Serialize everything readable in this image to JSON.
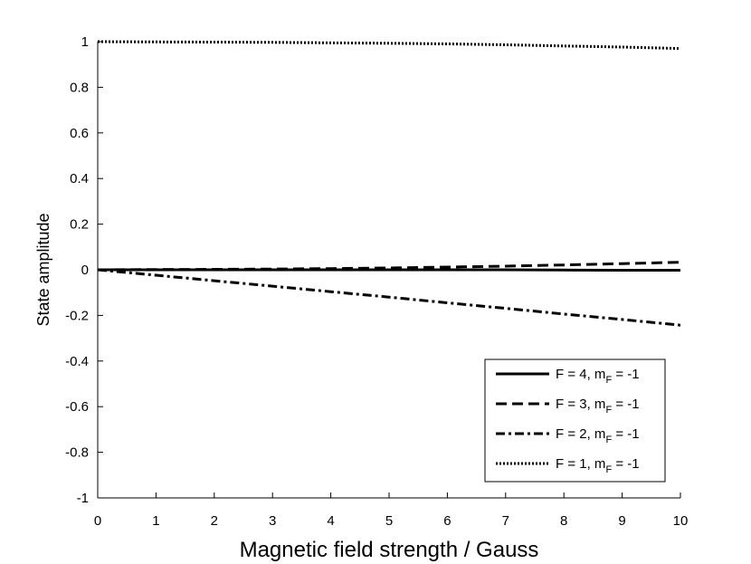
{
  "chart_data": {
    "type": "line",
    "title": "",
    "xlabel": "Magnetic field strength / Gauss",
    "ylabel": "State amplitude",
    "xlim": [
      0,
      10
    ],
    "ylim": [
      -1,
      1
    ],
    "xticks": [
      "0",
      "1",
      "2",
      "3",
      "4",
      "5",
      "6",
      "7",
      "8",
      "9",
      "10"
    ],
    "yticks": [
      "-1",
      "-0.8",
      "-0.6",
      "-0.4",
      "-0.2",
      "0",
      "0.2",
      "0.4",
      "0.6",
      "0.8",
      "1"
    ],
    "grid": false,
    "legend_position": "bottom-right",
    "x": [
      0,
      1,
      2,
      3,
      4,
      5,
      6,
      7,
      8,
      9,
      10
    ],
    "series": [
      {
        "legend": {
          "main": "F = 4, m",
          "sub": "F",
          "tail": " = -1"
        },
        "style": "solid",
        "values": [
          0,
          0,
          0,
          0,
          0,
          0,
          0,
          0,
          -0.001,
          -0.002,
          -0.002
        ]
      },
      {
        "legend": {
          "main": "F = 3, m",
          "sub": "F",
          "tail": " = -1"
        },
        "style": "dashed",
        "values": [
          0,
          0.001,
          0.002,
          0.003,
          0.005,
          0.008,
          0.012,
          0.016,
          0.021,
          0.027,
          0.033
        ]
      },
      {
        "legend": {
          "main": "F = 2, m",
          "sub": "F",
          "tail": " = -1"
        },
        "style": "dashdot",
        "values": [
          0,
          -0.024,
          -0.048,
          -0.072,
          -0.096,
          -0.12,
          -0.145,
          -0.169,
          -0.194,
          -0.218,
          -0.243
        ]
      },
      {
        "legend": {
          "main": "F = 1, m",
          "sub": "F",
          "tail": " = -1"
        },
        "style": "dotted",
        "values": [
          1,
          0.999,
          0.998,
          0.997,
          0.995,
          0.993,
          0.99,
          0.986,
          0.981,
          0.976,
          0.97
        ]
      }
    ]
  }
}
